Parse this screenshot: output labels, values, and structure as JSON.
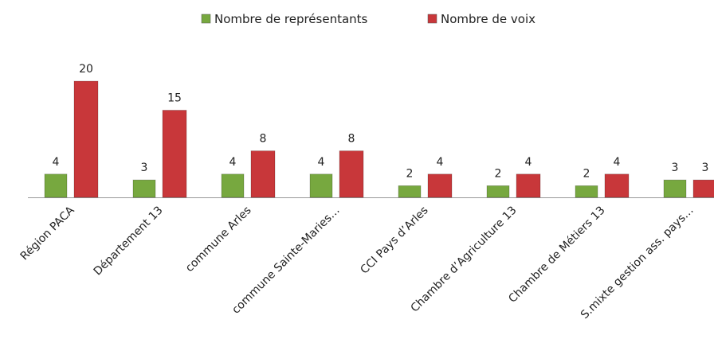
{
  "chart_data": {
    "type": "bar",
    "categories": [
      "Région PACA",
      "Département 13",
      "commune Arles",
      "commune Sainte-Maries…",
      "CCI Pays d’Arles",
      "Chambre d’Agriculture 13",
      "Chambre de Métiers 13",
      "S.mixte gestion ass. pays…"
    ],
    "series": [
      {
        "name": "Nombre de représentants",
        "color": "#77a83f",
        "values": [
          4,
          3,
          4,
          4,
          2,
          2,
          2,
          3
        ]
      },
      {
        "name": "Nombre de voix",
        "color": "#c8373a",
        "values": [
          20,
          15,
          8,
          8,
          4,
          4,
          4,
          3
        ]
      }
    ],
    "legend": "top"
  }
}
